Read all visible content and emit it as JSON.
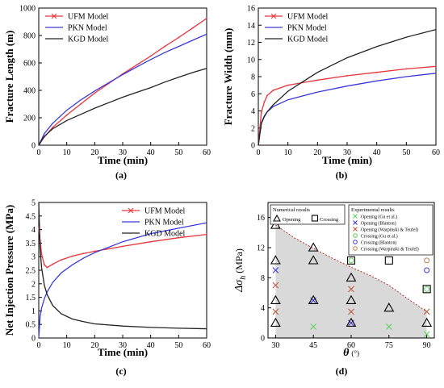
{
  "chart_data": [
    {
      "type": "line",
      "panel_label": "(a)",
      "xlabel": "Time (min)",
      "ylabel": "Fracture Length (m)",
      "xlim": [
        0,
        60
      ],
      "ylim": [
        0,
        1000
      ],
      "xticks": [
        0,
        10,
        20,
        30,
        40,
        50,
        60
      ],
      "yticks": [
        0,
        200,
        400,
        600,
        800,
        1000
      ],
      "legend_position": "top-left",
      "series": [
        {
          "name": "UFM Model",
          "color": "#e8343a",
          "x": [
            0,
            2,
            5,
            10,
            15,
            20,
            25,
            30,
            35,
            40,
            45,
            50,
            55,
            60
          ],
          "y": [
            0,
            60,
            130,
            220,
            300,
            380,
            450,
            520,
            585,
            650,
            720,
            785,
            855,
            925
          ]
        },
        {
          "name": "PKN Model",
          "color": "#3a3adc",
          "x": [
            0,
            2,
            5,
            10,
            15,
            20,
            25,
            30,
            35,
            40,
            45,
            50,
            55,
            60
          ],
          "y": [
            0,
            85,
            160,
            255,
            330,
            395,
            455,
            515,
            570,
            625,
            675,
            720,
            765,
            810
          ]
        },
        {
          "name": "KGD Model",
          "color": "#222222",
          "x": [
            0,
            2,
            5,
            10,
            15,
            20,
            25,
            30,
            35,
            40,
            45,
            50,
            55,
            60
          ],
          "y": [
            0,
            65,
            120,
            180,
            225,
            270,
            310,
            350,
            385,
            420,
            460,
            495,
            530,
            560
          ]
        }
      ]
    },
    {
      "type": "line",
      "panel_label": "(b)",
      "xlabel": "Time (min)",
      "ylabel": "Fracture Width (mm)",
      "xlim": [
        0,
        60
      ],
      "ylim": [
        0,
        16
      ],
      "xticks": [
        0,
        10,
        20,
        30,
        40,
        50,
        60
      ],
      "yticks": [
        0,
        2,
        4,
        6,
        8,
        10,
        12,
        14,
        16
      ],
      "legend_position": "top-left",
      "series": [
        {
          "name": "UFM Model",
          "color": "#e8343a",
          "x": [
            0,
            1,
            2,
            3,
            5,
            10,
            20,
            30,
            40,
            50,
            60
          ],
          "y": [
            0,
            3.8,
            5.0,
            5.8,
            6.4,
            7.0,
            7.6,
            8.1,
            8.5,
            8.9,
            9.2
          ]
        },
        {
          "name": "PKN Model",
          "color": "#3a3adc",
          "x": [
            0,
            1,
            2,
            3,
            5,
            10,
            20,
            30,
            40,
            50,
            60
          ],
          "y": [
            0,
            2.6,
            3.4,
            3.9,
            4.5,
            5.3,
            6.2,
            6.9,
            7.5,
            8.0,
            8.4
          ]
        },
        {
          "name": "KGD Model",
          "color": "#222222",
          "x": [
            0,
            1,
            2,
            3,
            5,
            10,
            20,
            30,
            40,
            50,
            60
          ],
          "y": [
            0,
            2.5,
            3.3,
            3.9,
            4.7,
            6.3,
            8.5,
            10.2,
            11.5,
            12.6,
            13.5
          ]
        }
      ]
    },
    {
      "type": "line",
      "panel_label": "(c)",
      "xlabel": "Time (min)",
      "ylabel": "Net Injection Pressure (MPa)",
      "xlim": [
        0,
        60
      ],
      "ylim": [
        0,
        5
      ],
      "xticks": [
        0,
        10,
        20,
        30,
        40,
        50,
        60
      ],
      "yticks": [
        0,
        0.5,
        1,
        1.5,
        2,
        2.5,
        3,
        3.5,
        4,
        4.5,
        5
      ],
      "legend_position": "top-right",
      "series": [
        {
          "name": "UFM Model",
          "color": "#e8343a",
          "x": [
            0,
            0.5,
            1,
            2,
            3,
            5,
            8,
            12,
            16,
            20,
            30,
            40,
            50,
            60
          ],
          "y": [
            4.1,
            3.6,
            3.1,
            2.7,
            2.6,
            2.72,
            2.88,
            3.02,
            3.12,
            3.2,
            3.38,
            3.55,
            3.7,
            3.82
          ]
        },
        {
          "name": "PKN Model",
          "color": "#3a3adc",
          "x": [
            0,
            0.5,
            1,
            2,
            3,
            5,
            8,
            12,
            16,
            20,
            30,
            40,
            50,
            60
          ],
          "y": [
            0,
            0.8,
            1.1,
            1.45,
            1.7,
            2.05,
            2.4,
            2.7,
            2.95,
            3.15,
            3.55,
            3.85,
            4.05,
            4.25
          ]
        },
        {
          "name": "KGD Model",
          "color": "#222222",
          "x": [
            0,
            0.5,
            1,
            2,
            3,
            5,
            8,
            12,
            16,
            20,
            30,
            40,
            50,
            60
          ],
          "y": [
            5,
            3.3,
            2.6,
            1.95,
            1.6,
            1.2,
            0.9,
            0.7,
            0.6,
            0.52,
            0.44,
            0.39,
            0.36,
            0.34
          ]
        }
      ]
    },
    {
      "type": "scatter",
      "panel_label": "(d)",
      "xlabel": "θ",
      "xlabel_unit": "(°)",
      "ylabel": "Δσ",
      "ylabel_subscript": "h",
      "ylabel_unit": "(MPa)",
      "xlim": [
        27,
        93
      ],
      "ylim": [
        0,
        18
      ],
      "xticks": [
        30,
        45,
        60,
        75,
        90
      ],
      "yticks": [
        0,
        4,
        8,
        12,
        16
      ],
      "boundary_curve": {
        "x": [
          30,
          37.5,
          45,
          52.5,
          60,
          67.5,
          75,
          82.5,
          90
        ],
        "y": [
          15,
          13.3,
          11.9,
          10.6,
          9.4,
          8.3,
          7.0,
          5.2,
          3.5
        ]
      },
      "legend_numerical": {
        "title": "Numerical results",
        "entries": [
          {
            "label": "Opening",
            "marker": "triangle"
          },
          {
            "label": "Crossing",
            "marker": "square"
          }
        ]
      },
      "legend_experimental": {
        "title": "Experimental results",
        "entries": [
          {
            "label": "Opening (Gu et al.)",
            "marker": "x",
            "color": "#5fd05f"
          },
          {
            "label": "Opening (Blanton)",
            "marker": "x",
            "color": "#3a3adc"
          },
          {
            "label": "Opening (Warpinski & Teufel)",
            "marker": "x",
            "color": "#b85a3a"
          },
          {
            "label": "Crossing (Gu et al.)",
            "marker": "o",
            "color": "#5fd05f"
          },
          {
            "label": "Crossing (Blanton)",
            "marker": "o",
            "color": "#3a3adc"
          },
          {
            "label": "Crossing (Warpinski & Teufel)",
            "marker": "o",
            "color": "#c08040"
          }
        ]
      },
      "numerical_opening": [
        [
          30,
          2
        ],
        [
          30,
          5
        ],
        [
          30,
          10.3
        ],
        [
          30,
          15
        ],
        [
          45,
          5
        ],
        [
          45,
          10.3
        ],
        [
          45,
          12
        ],
        [
          60,
          2
        ],
        [
          60,
          5
        ],
        [
          60,
          8
        ],
        [
          75,
          4
        ],
        [
          90,
          2
        ]
      ],
      "numerical_crossing": [
        [
          60,
          10.3
        ],
        [
          75,
          10.3
        ],
        [
          90,
          6.5
        ]
      ],
      "experimental": [
        {
          "series": 0,
          "x": 45,
          "y": 1.5
        },
        {
          "series": 0,
          "x": 75,
          "y": 1.5
        },
        {
          "series": 0,
          "x": 90,
          "y": 0.5
        },
        {
          "series": 1,
          "x": 30,
          "y": 9
        },
        {
          "series": 1,
          "x": 45,
          "y": 5
        },
        {
          "series": 1,
          "x": 60,
          "y": 2
        },
        {
          "series": 2,
          "x": 30,
          "y": 3.5
        },
        {
          "series": 2,
          "x": 30,
          "y": 7
        },
        {
          "series": 2,
          "x": 60,
          "y": 3.5
        },
        {
          "series": 2,
          "x": 60,
          "y": 6.5
        },
        {
          "series": 2,
          "x": 90,
          "y": 3.5
        },
        {
          "series": 3,
          "x": 60,
          "y": 10.3
        },
        {
          "series": 3,
          "x": 90,
          "y": 6.5
        },
        {
          "series": 4,
          "x": 60,
          "y": 15
        },
        {
          "series": 4,
          "x": 90,
          "y": 9
        },
        {
          "series": 5,
          "x": 90,
          "y": 10.3
        }
      ]
    }
  ]
}
